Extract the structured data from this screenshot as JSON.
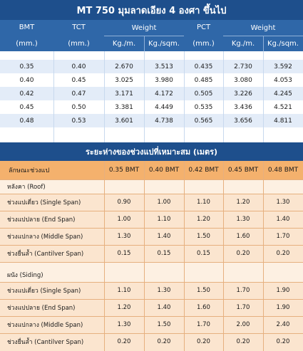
{
  "title": "MT 750  มุมลาดเอียง  4  องศา ขึ้นไป",
  "spec_table": {
    "headers": {
      "bmt": "BMT",
      "bmt_unit": "(mm.)",
      "tct": "TCT",
      "tct_unit": "(mm.)",
      "weight": "Weight",
      "kg_m": "Kg./m.",
      "kg_sqm": "Kg./sqm.",
      "pct": "PCT",
      "pct_unit": "(mm.)",
      "weight2": "Weight",
      "kg_m2": "Kg./m.",
      "kg_sqm2": "Kg./sqm."
    },
    "rows": [
      [
        "0.35",
        "0.40",
        "2.670",
        "3.513",
        "0.435",
        "2.730",
        "3.592"
      ],
      [
        "0.40",
        "0.45",
        "3.025",
        "3.980",
        "0.485",
        "3.080",
        "4.053"
      ],
      [
        "0.42",
        "0.47",
        "3.171",
        "4.172",
        "0.505",
        "3.226",
        "4.245"
      ],
      [
        "0.45",
        "0.50",
        "3.381",
        "4.449",
        "0.535",
        "3.436",
        "4.521"
      ],
      [
        "0.48",
        "0.53",
        "3.601",
        "4.738",
        "0.565",
        "3.656",
        "4.811"
      ]
    ]
  },
  "span_title": "ระยะห่างของช่วงแปที่เหมาะสม (เมตร)",
  "span_table": {
    "header_label": "ลักษณะช่วงแป",
    "columns": [
      "0.35 BMT",
      "0.40 BMT",
      "0.42 BMT",
      "0.45 BMT",
      "0.48 BMT"
    ],
    "roof_label": "หลังคา (Roof)",
    "roof_rows": [
      {
        "label": "ช่วงแปเดี่ยว (Single Span)",
        "values": [
          "0.90",
          "1.00",
          "1.10",
          "1.20",
          "1.30"
        ]
      },
      {
        "label": "ช่วงแปปลาย (End Span)",
        "values": [
          "1.00",
          "1.10",
          "1.20",
          "1.30",
          "1.40"
        ]
      },
      {
        "label": "ช่วงแปกลาง (Middle Span)",
        "values": [
          "1.30",
          "1.40",
          "1.50",
          "1.60",
          "1.70"
        ]
      },
      {
        "label": "ช่วงยื่นล้ำ (Cantilver Span)",
        "values": [
          "0.15",
          "0.15",
          "0.15",
          "0.20",
          "0.20"
        ]
      }
    ],
    "siding_label": "ผนัง (Siding)",
    "siding_rows": [
      {
        "label": "ช่วงแปเดี่ยว (Single Span)",
        "values": [
          "1.10",
          "1.30",
          "1.50",
          "1.70",
          "1.90"
        ]
      },
      {
        "label": "ช่วงแปปลาย (End Span)",
        "values": [
          "1.20",
          "1.40",
          "1.60",
          "1.70",
          "1.90"
        ]
      },
      {
        "label": "ช่วงแปกลาง (Middle Span)",
        "values": [
          "1.30",
          "1.50",
          "1.70",
          "2.00",
          "2.40"
        ]
      },
      {
        "label": "ช่วงยื่นล้ำ (Cantilver Span)",
        "values": [
          "0.20",
          "0.20",
          "0.20",
          "0.20",
          "0.20"
        ]
      }
    ]
  }
}
